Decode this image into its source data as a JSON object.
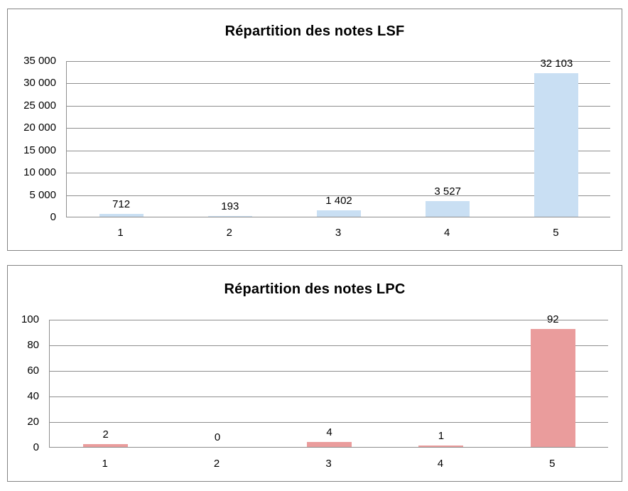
{
  "chart_data": [
    {
      "type": "bar",
      "title": "Répartition des notes LSF",
      "categories": [
        "1",
        "2",
        "3",
        "4",
        "5"
      ],
      "values": [
        712,
        193,
        1402,
        3527,
        32103
      ],
      "value_labels": [
        "712",
        "193",
        "1 402",
        "3 527",
        "32 103"
      ],
      "xlabel": "",
      "ylabel": "",
      "ylim": [
        0,
        35000
      ],
      "y_tick_step": 5000,
      "y_tick_labels": [
        "35 000",
        "30 000",
        "25 000",
        "20 000",
        "15 000",
        "10 000",
        "5 000",
        "0"
      ],
      "grid": true,
      "legend": false,
      "bar_color": "#C9DFF3"
    },
    {
      "type": "bar",
      "title": "Répartition des notes LPC",
      "categories": [
        "1",
        "2",
        "3",
        "4",
        "5"
      ],
      "values": [
        2,
        0,
        4,
        1,
        92
      ],
      "value_labels": [
        "2",
        "0",
        "4",
        "1",
        "92"
      ],
      "xlabel": "",
      "ylabel": "",
      "ylim": [
        0,
        100
      ],
      "y_tick_step": 20,
      "y_tick_labels": [
        "100",
        "80",
        "60",
        "40",
        "20",
        "0"
      ],
      "grid": true,
      "legend": false,
      "bar_color": "#EA9C9C"
    }
  ],
  "colors": {
    "lsf_bar": "#C9DFF3",
    "lpc_bar": "#EA9C9C",
    "grid_line": "#8E8E8E",
    "axis_line": "#8E8E8E",
    "frame_border": "#848484",
    "text": "#000000"
  }
}
